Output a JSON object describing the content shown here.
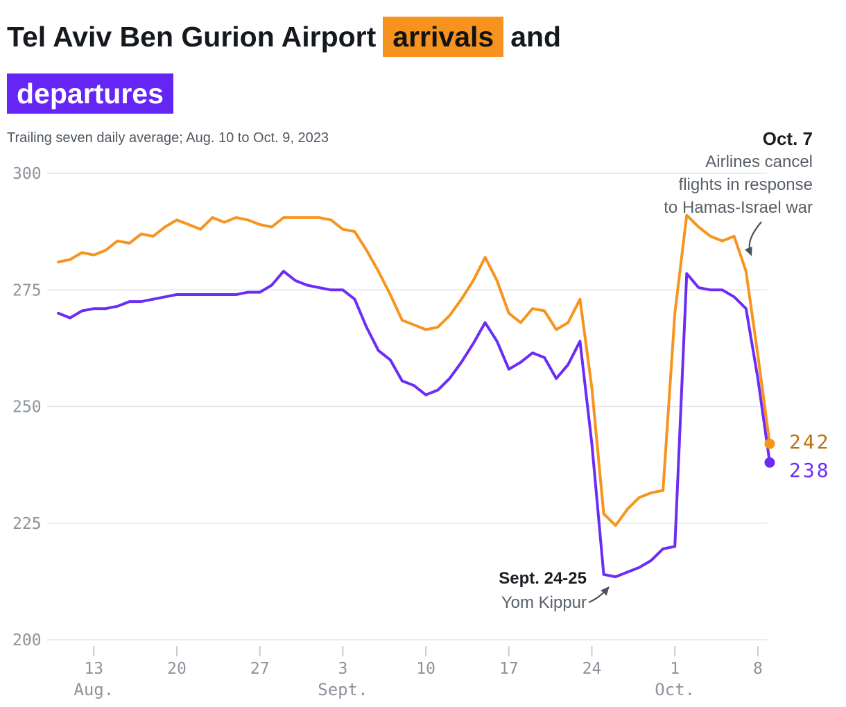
{
  "title": {
    "prefix": "Tel Aviv Ben Gurion Airport",
    "highlight_arrivals": "arrivals",
    "conjunction": "and",
    "highlight_departures": "departures"
  },
  "subtitle": "Trailing seven daily average; Aug. 10 to Oct. 9, 2023",
  "annotations": {
    "oct7": {
      "date": "Oct. 7",
      "lines": [
        "Airlines cancel",
        "flights in response",
        "to Hamas-Israel war"
      ]
    },
    "yom_kippur": {
      "date": "Sept. 24-25",
      "label": "Yom Kippur"
    }
  },
  "end_labels": {
    "arrivals": "242",
    "departures": "238"
  },
  "colors": {
    "arrivals_line": "#F7941E",
    "arrivals_highlight_bg": "#F6921E",
    "arrivals_value_text": "#C06F0E",
    "departures_line": "#6B2DF5",
    "departures_highlight_bg": "#6526F5",
    "departures_value_text": "#6B2DF5",
    "grid": "#E5E5E7",
    "axis_text": "#8C939C",
    "annotation_dark": "#1B1F24",
    "annotation_gray": "#575F68"
  },
  "chart_data": {
    "type": "line",
    "title": "Tel Aviv Ben Gurion Airport arrivals and departures",
    "subtitle": "Trailing seven daily average; Aug. 10 to Oct. 9, 2023",
    "x_axis_note": "61 daily points, day 0 = Aug. 10, 2023, day 60 = Oct. 9, 2023",
    "ylim": [
      200,
      300
    ],
    "yticks": [
      300,
      275,
      250,
      225,
      200
    ],
    "grid": "horizontal",
    "legend_position": "none (highlighted title words act as legend)",
    "xticks": [
      {
        "day": 3,
        "label": "13"
      },
      {
        "day": 10,
        "label": "20"
      },
      {
        "day": 17,
        "label": "27"
      },
      {
        "day": 24,
        "label": "3"
      },
      {
        "day": 31,
        "label": "10"
      },
      {
        "day": 38,
        "label": "17"
      },
      {
        "day": 45,
        "label": "24"
      },
      {
        "day": 52,
        "label": "1"
      },
      {
        "day": 59,
        "label": "8"
      }
    ],
    "month_labels": [
      {
        "day": 3,
        "label": "Aug."
      },
      {
        "day": 24,
        "label": "Sept."
      },
      {
        "day": 52,
        "label": "Oct."
      }
    ],
    "series": [
      {
        "name": "arrivals",
        "color": "#F7941E",
        "end_value": 242,
        "values": [
          281,
          281.5,
          283,
          282.5,
          283.5,
          285.5,
          285,
          287,
          286.5,
          288.5,
          290,
          289,
          288,
          290.5,
          289.5,
          290.5,
          290,
          289,
          288.5,
          290.5,
          290.5,
          290.5,
          290.5,
          290,
          288,
          287.5,
          283.5,
          279,
          274,
          268.5,
          267.5,
          266.5,
          267,
          269.5,
          273,
          277,
          282,
          277,
          270,
          268,
          271,
          270.5,
          266.5,
          268,
          273,
          254,
          227,
          224.5,
          228,
          230.5,
          231.5,
          232,
          270,
          291,
          288.5,
          286.5,
          285.5,
          286.5,
          279,
          261,
          242
        ]
      },
      {
        "name": "departures",
        "color": "#6B2DF5",
        "end_value": 238,
        "values": [
          270,
          269,
          270.5,
          271,
          271,
          271.5,
          272.5,
          272.5,
          273,
          273.5,
          274,
          274,
          274,
          274,
          274,
          274,
          274.5,
          274.5,
          276,
          279,
          277,
          276,
          275.5,
          275,
          275,
          273,
          267,
          262,
          260,
          255.5,
          254.5,
          252.5,
          253.5,
          256,
          259.5,
          263.5,
          268,
          264,
          258,
          259.5,
          261.5,
          260.5,
          256,
          259,
          264,
          242,
          214,
          213.5,
          214.5,
          215.5,
          217,
          219.5,
          220,
          278.5,
          275.5,
          275,
          275,
          273.5,
          271,
          256,
          238
        ]
      }
    ]
  }
}
